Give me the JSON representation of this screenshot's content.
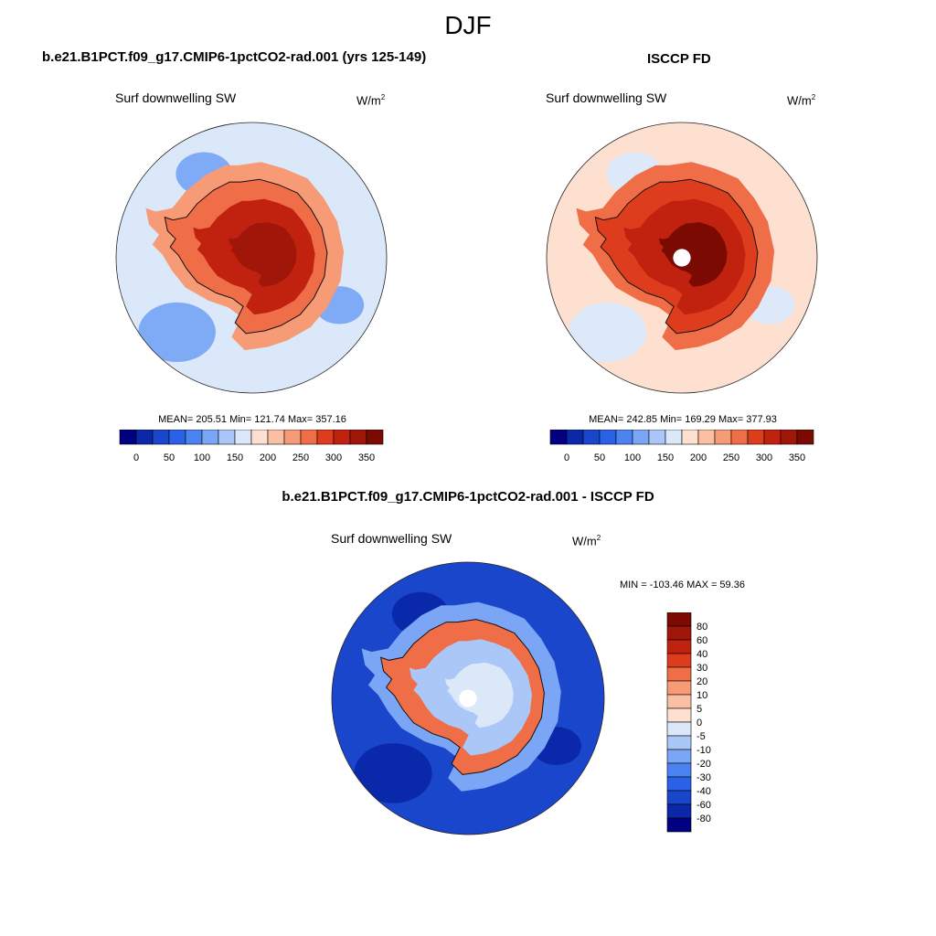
{
  "figure": {
    "title": "DJF"
  },
  "panels": [
    {
      "id": "model",
      "title": "b.e21.B1PCT.f09_g17.CMIP6-1pctCO2-rad.001 (yrs 125-149)",
      "variable": "Surf downwelling SW",
      "units_base": "W/m",
      "units_exp": "2",
      "stats_text": "MEAN= 205.51  Min= 121.74  Max= 357.16",
      "mean": 205.51,
      "min": 121.74,
      "max": 357.16,
      "colorbar_labels": [
        "0",
        "50",
        "100",
        "150",
        "200",
        "250",
        "300",
        "350"
      ],
      "field": {
        "ocean": 150,
        "ocean_low": 110,
        "ice_edge": 230,
        "coast": 265,
        "inland": 320,
        "plateau": 345,
        "pole_hole": false
      }
    },
    {
      "id": "obs",
      "title": "ISCCP FD",
      "variable": "Surf downwelling SW",
      "units_base": "W/m",
      "units_exp": "2",
      "stats_text": "MEAN= 242.85  Min= 169.29  Max= 377.93",
      "mean": 242.85,
      "min": 169.29,
      "max": 377.93,
      "colorbar_labels": [
        "0",
        "50",
        "100",
        "150",
        "200",
        "250",
        "300",
        "350"
      ],
      "field": {
        "ocean": 195,
        "ocean_low": 160,
        "ice_edge": 255,
        "coast": 280,
        "inland": 320,
        "plateau": 355,
        "pole_hole": true
      }
    }
  ],
  "diff_panel": {
    "title": "b.e21.B1PCT.f09_g17.CMIP6-1pctCO2-rad.001 - ISCCP FD",
    "variable": "Surf downwelling SW",
    "units_base": "W/m",
    "units_exp": "2",
    "stats_text": "MIN = -103.46 MAX =  59.36",
    "min": -103.46,
    "max": 59.36,
    "colorbar_labels": [
      "80",
      "60",
      "40",
      "30",
      "20",
      "10",
      "5",
      "0",
      "-5",
      "-10",
      "-20",
      "-30",
      "-40",
      "-60",
      "-80"
    ],
    "field": {
      "ocean": -50,
      "ocean_low": -75,
      "ice_edge": -20,
      "coast": 25,
      "inland": -10,
      "plateau": -5,
      "pole_hole": true
    }
  },
  "colors": {
    "seq_levels": [
      0,
      25,
      50,
      75,
      100,
      125,
      150,
      175,
      200,
      225,
      250,
      275,
      300,
      325,
      350
    ],
    "seq": [
      "#000080",
      "#0a28a8",
      "#1a46cc",
      "#2b61e6",
      "#4b84f0",
      "#7aa6f5",
      "#aac7f8",
      "#dbe8fa",
      "#fde0d0",
      "#fbc0a4",
      "#f79a76",
      "#ef6d47",
      "#dd3d1c",
      "#c12210",
      "#a01608",
      "#7b0a02"
    ],
    "div_levels": [
      -80,
      -60,
      -40,
      -30,
      -20,
      -10,
      -5,
      0,
      5,
      10,
      20,
      30,
      40,
      60,
      80
    ],
    "div": [
      "#000080",
      "#0a28a8",
      "#1a46cc",
      "#2b61e6",
      "#4b84f0",
      "#7aa6f5",
      "#aac7f8",
      "#dbe8fa",
      "#fde0d0",
      "#fbc0a4",
      "#f79a76",
      "#ef6d47",
      "#dd3d1c",
      "#c12210",
      "#a01608",
      "#7b0a02"
    ]
  }
}
